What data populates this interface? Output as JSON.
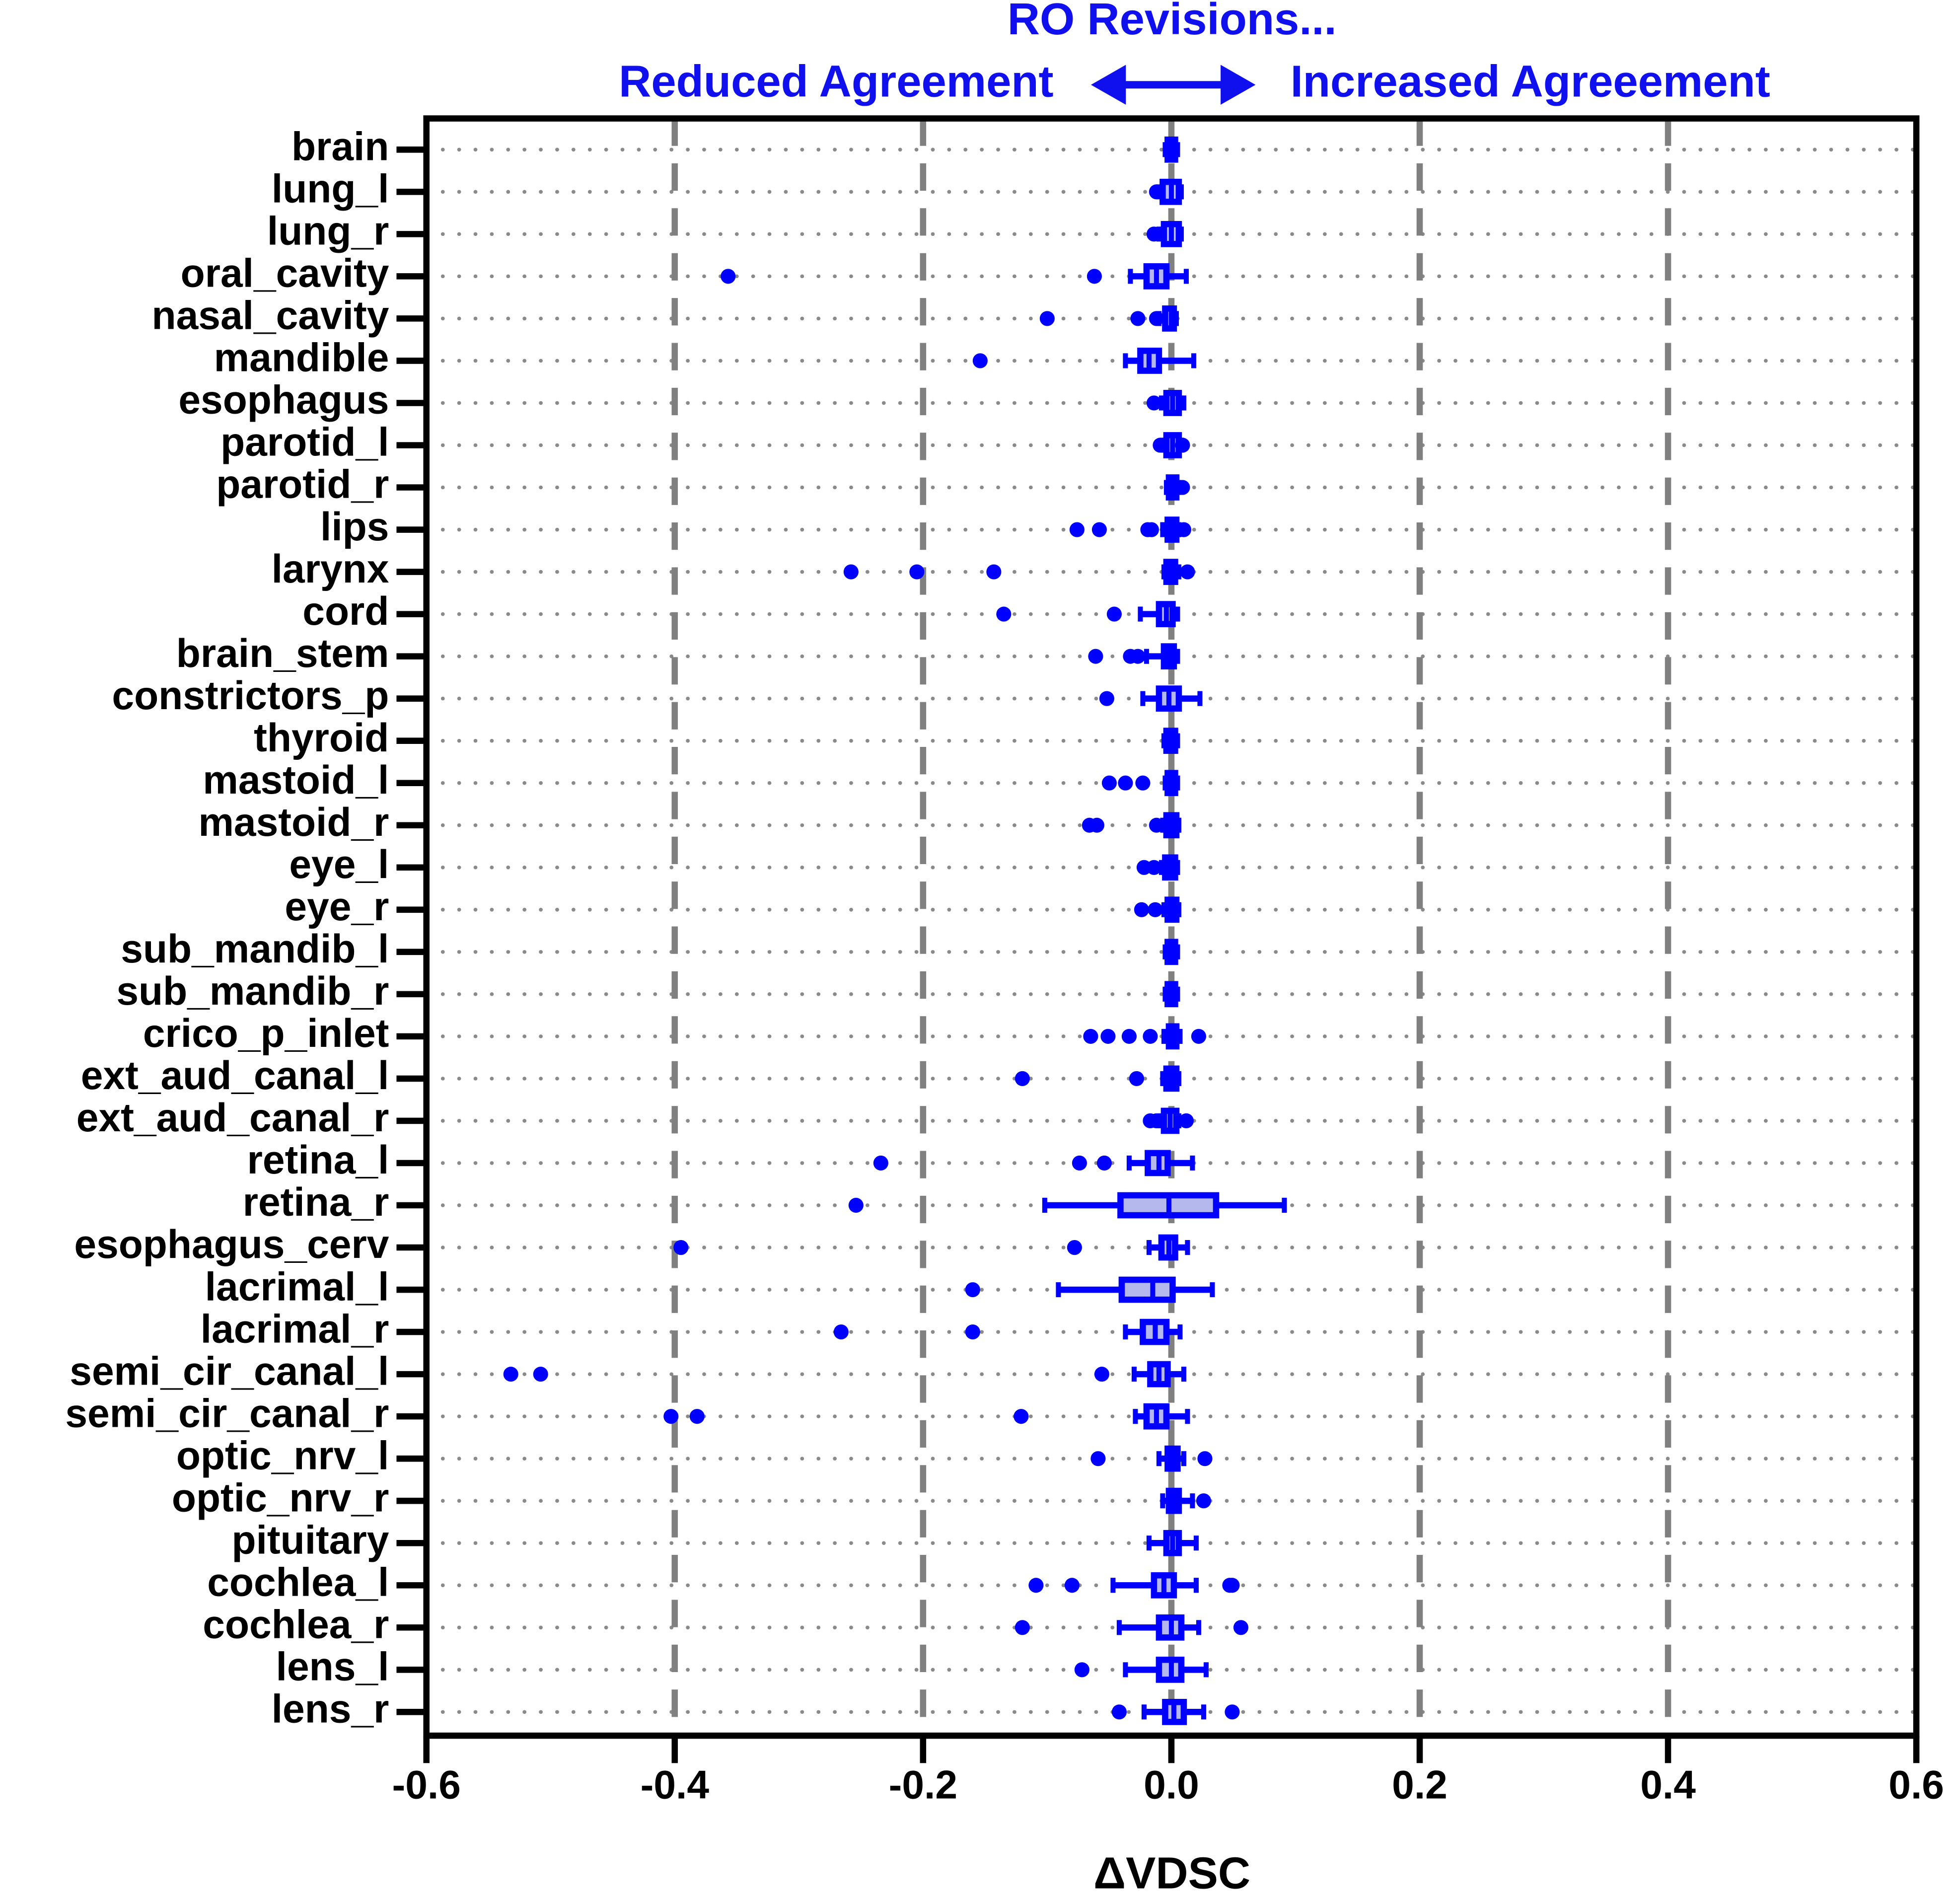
{
  "chart_data": {
    "type": "box",
    "title": "RO  Revisions...",
    "annotations": [
      "Reduced Agreement",
      "Increased  Agreeement"
    ],
    "xlabel": "ΔVDSC",
    "color": "#0000ff",
    "box_fill": "#b4b8ec",
    "grid": true,
    "xlim": [
      -0.6,
      0.6
    ],
    "xticks": [
      -0.6,
      -0.4,
      -0.2,
      {
        "value": 0,
        "label": "0.0"
      },
      0.2,
      0.4,
      0.6
    ],
    "categories": [
      "brain",
      "lung_l",
      "lung_r",
      "oral_cavity",
      "nasal_cavity",
      "mandible",
      "esophagus",
      "parotid_l",
      "parotid_r",
      "lips",
      "larynx",
      "cord",
      "brain_stem",
      "constrictors_p",
      "thyroid",
      "mastoid_l",
      "mastoid_r",
      "eye_l",
      "eye_r",
      "sub_mandib_l",
      "sub_mandib_r",
      "crico_p_inlet",
      "ext_aud_canal_l",
      "ext_aud_canal_r",
      "retina_l",
      "retina_r",
      "esophagus_cerv",
      "lacrimal_l",
      "lacrimal_r",
      "semi_cir_canal_l",
      "semi_cir_canal_r",
      "optic_nrv_l",
      "optic_nrv_r",
      "pituitary",
      "cochlea_l",
      "cochlea_r",
      "lens_l",
      "lens_r"
    ],
    "boxes": [
      {
        "whislo": -0.005,
        "q1": -0.003,
        "med": 0,
        "q3": 0.003,
        "whishi": 0.005,
        "outliers": []
      },
      {
        "whislo": -0.01,
        "q1": -0.007,
        "med": 0,
        "q3": 0.006,
        "whishi": 0.008,
        "outliers": [
          -0.012
        ]
      },
      {
        "whislo": -0.01,
        "q1": -0.006,
        "med": 0,
        "q3": 0.006,
        "whishi": 0.008,
        "outliers": [
          -0.014
        ]
      },
      {
        "whislo": -0.033,
        "q1": -0.02,
        "med": -0.012,
        "q3": -0.004,
        "whishi": 0.012,
        "outliers": [
          -0.357,
          -0.062
        ]
      },
      {
        "whislo": -0.01,
        "q1": -0.005,
        "med": 0,
        "q3": 0.002,
        "whishi": 0.004,
        "outliers": [
          -0.1,
          -0.027,
          -0.012
        ]
      },
      {
        "whislo": -0.037,
        "q1": -0.025,
        "med": -0.018,
        "q3": -0.01,
        "whishi": 0.018,
        "outliers": [
          -0.154
        ]
      },
      {
        "whislo": -0.008,
        "q1": -0.004,
        "med": 0.001,
        "q3": 0.006,
        "whishi": 0.01,
        "outliers": [
          -0.014
        ]
      },
      {
        "whislo": -0.007,
        "q1": -0.004,
        "med": 0.001,
        "q3": 0.006,
        "whishi": 0.008,
        "outliers": [
          -0.009,
          0.009
        ]
      },
      {
        "whislo": -0.004,
        "q1": -0.002,
        "med": 0,
        "q3": 0.004,
        "whishi": 0.006,
        "outliers": [
          0.009
        ]
      },
      {
        "whislo": -0.007,
        "q1": -0.003,
        "med": 0,
        "q3": 0.004,
        "whishi": 0.006,
        "outliers": [
          -0.076,
          -0.058,
          -0.019,
          -0.016,
          0.01
        ]
      },
      {
        "whislo": -0.006,
        "q1": -0.004,
        "med": 0,
        "q3": 0.003,
        "whishi": 0.006,
        "outliers": [
          -0.258,
          -0.205,
          -0.143,
          0.013
        ]
      },
      {
        "whislo": -0.025,
        "q1": -0.01,
        "med": -0.004,
        "q3": 0.001,
        "whishi": 0.005,
        "outliers": [
          -0.135,
          -0.046
        ]
      },
      {
        "whislo": -0.02,
        "q1": -0.006,
        "med": -0.002,
        "q3": 0.002,
        "whishi": 0.005,
        "outliers": [
          -0.061,
          -0.033,
          -0.027
        ]
      },
      {
        "whislo": -0.023,
        "q1": -0.01,
        "med": -0.002,
        "q3": 0.006,
        "whishi": 0.023,
        "outliers": [
          -0.052
        ]
      },
      {
        "whislo": -0.006,
        "q1": -0.004,
        "med": 0,
        "q3": 0.003,
        "whishi": 0.005,
        "outliers": []
      },
      {
        "whislo": -0.005,
        "q1": -0.003,
        "med": 0,
        "q3": 0.003,
        "whishi": 0.005,
        "outliers": [
          -0.05,
          -0.037,
          -0.023
        ]
      },
      {
        "whislo": -0.007,
        "q1": -0.004,
        "med": 0,
        "q3": 0.004,
        "whishi": 0.006,
        "outliers": [
          -0.06,
          -0.066,
          -0.012
        ]
      },
      {
        "whislo": -0.008,
        "q1": -0.005,
        "med": -0.001,
        "q3": 0.003,
        "whishi": 0.005,
        "outliers": [
          -0.022,
          -0.014
        ]
      },
      {
        "whislo": -0.006,
        "q1": -0.003,
        "med": 0,
        "q3": 0.004,
        "whishi": 0.006,
        "outliers": [
          -0.024,
          -0.013
        ]
      },
      {
        "whislo": -0.005,
        "q1": -0.003,
        "med": 0,
        "q3": 0.003,
        "whishi": 0.005,
        "outliers": []
      },
      {
        "whislo": -0.005,
        "q1": -0.003,
        "med": 0,
        "q3": 0.003,
        "whishi": 0.005,
        "outliers": []
      },
      {
        "whislo": -0.006,
        "q1": -0.002,
        "med": 0,
        "q3": 0.004,
        "whishi": 0.007,
        "outliers": [
          -0.065,
          -0.051,
          -0.034,
          -0.017,
          0.022
        ]
      },
      {
        "whislo": -0.007,
        "q1": -0.004,
        "med": 0,
        "q3": 0.004,
        "whishi": 0.006,
        "outliers": [
          -0.12,
          -0.028
        ]
      },
      {
        "whislo": -0.009,
        "q1": -0.006,
        "med": -0.001,
        "q3": 0.004,
        "whishi": 0.006,
        "outliers": [
          -0.017,
          -0.012,
          0.012
        ]
      },
      {
        "whislo": -0.034,
        "q1": -0.019,
        "med": -0.01,
        "q3": -0.003,
        "whishi": 0.017,
        "outliers": [
          -0.234,
          -0.074,
          -0.054
        ]
      },
      {
        "whislo": -0.102,
        "q1": -0.041,
        "med": -0.002,
        "q3": 0.036,
        "whishi": 0.091,
        "outliers": [
          -0.254
        ]
      },
      {
        "whislo": -0.018,
        "q1": -0.008,
        "med": -0.002,
        "q3": 0.003,
        "whishi": 0.013,
        "outliers": [
          -0.395,
          -0.078
        ]
      },
      {
        "whislo": -0.091,
        "q1": -0.04,
        "med": -0.015,
        "q3": 0.001,
        "whishi": 0.033,
        "outliers": [
          -0.16
        ]
      },
      {
        "whislo": -0.037,
        "q1": -0.023,
        "med": -0.013,
        "q3": -0.004,
        "whishi": 0.007,
        "outliers": [
          -0.266,
          -0.16
        ]
      },
      {
        "whislo": -0.03,
        "q1": -0.017,
        "med": -0.01,
        "q3": -0.003,
        "whishi": 0.01,
        "outliers": [
          -0.532,
          -0.508,
          -0.056
        ]
      },
      {
        "whislo": -0.029,
        "q1": -0.02,
        "med": -0.012,
        "q3": -0.004,
        "whishi": 0.013,
        "outliers": [
          -0.403,
          -0.382,
          -0.121
        ]
      },
      {
        "whislo": -0.01,
        "q1": -0.003,
        "med": 0.001,
        "q3": 0.005,
        "whishi": 0.01,
        "outliers": [
          -0.059,
          0.027
        ]
      },
      {
        "whislo": -0.007,
        "q1": -0.002,
        "med": 0.002,
        "q3": 0.006,
        "whishi": 0.017,
        "outliers": [
          0.026
        ]
      },
      {
        "whislo": -0.018,
        "q1": -0.004,
        "med": 0.001,
        "q3": 0.006,
        "whishi": 0.02,
        "outliers": []
      },
      {
        "whislo": -0.047,
        "q1": -0.014,
        "med": -0.006,
        "q3": 0.002,
        "whishi": 0.02,
        "outliers": [
          -0.109,
          -0.08,
          0.049,
          0.047
        ]
      },
      {
        "whislo": -0.042,
        "q1": -0.01,
        "med": 0,
        "q3": 0.008,
        "whishi": 0.022,
        "outliers": [
          -0.12,
          0.056
        ]
      },
      {
        "whislo": -0.037,
        "q1": -0.01,
        "med": 0,
        "q3": 0.008,
        "whishi": 0.028,
        "outliers": [
          -0.072
        ]
      },
      {
        "whislo": -0.022,
        "q1": -0.005,
        "med": 0.002,
        "q3": 0.01,
        "whishi": 0.026,
        "outliers": [
          -0.042,
          0.049
        ]
      }
    ]
  }
}
